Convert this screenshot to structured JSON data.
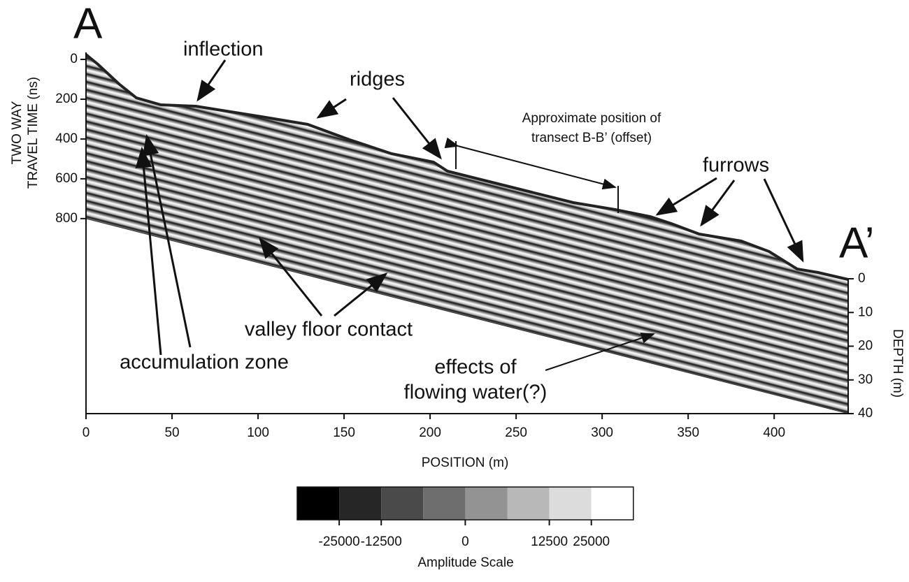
{
  "chart_data": {
    "type": "radargram",
    "panel_labels": [
      "A",
      "A’"
    ],
    "annotations": [
      "inflection",
      "ridges",
      "Approximate position of",
      "transect B-B’ (offset)",
      "furrows",
      "valley floor contact",
      "accumulation zone",
      "effects of",
      "flowing water(?)"
    ],
    "xlabel": "POSITION (m)",
    "ylabel": [
      "TWO WAY",
      "TRAVEL TIME (ns)"
    ],
    "y2label": "DEPTH (m)",
    "xlim": [
      0,
      443
    ],
    "xticks": [
      0,
      50,
      100,
      150,
      200,
      250,
      300,
      350,
      400
    ],
    "ylim": [
      0,
      1780
    ],
    "yticks": [
      0,
      200,
      400,
      600,
      800
    ],
    "y2lim": [
      0,
      40
    ],
    "y2ticks": [
      0,
      10,
      20,
      30,
      40
    ],
    "colorbar": {
      "label": "Amplitude Scale",
      "colors": [
        "#000000",
        "#262626",
        "#4a4a4a",
        "#6e6e6e",
        "#939393",
        "#b8b8b8",
        "#dcdcdc",
        "#ffffff"
      ],
      "ticks": [
        -25000,
        -12500,
        0,
        12500,
        25000
      ]
    }
  }
}
